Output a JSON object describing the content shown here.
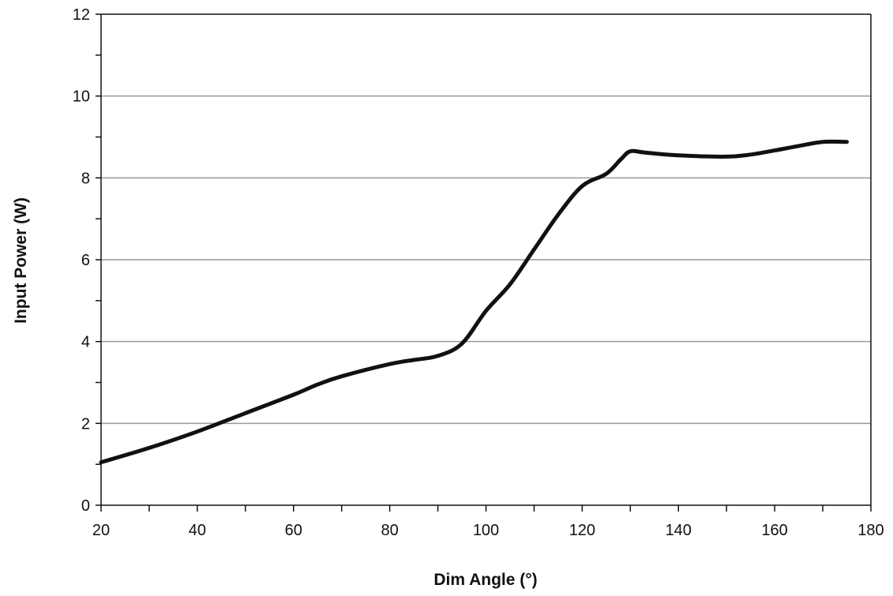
{
  "chart_data": {
    "type": "line",
    "title": "",
    "xlabel": "Dim Angle (°)",
    "ylabel": "Input Power (W)",
    "xlim": [
      20,
      180
    ],
    "ylim": [
      0,
      12
    ],
    "x_ticks": [
      20,
      40,
      60,
      80,
      100,
      120,
      140,
      160,
      180
    ],
    "y_ticks": [
      0,
      2,
      4,
      6,
      8,
      10,
      12
    ],
    "grid": "horizontal",
    "legend": "none",
    "line_color": "#111111",
    "grid_color": "#999999",
    "series": [
      {
        "x": [
          20,
          30,
          40,
          50,
          60,
          65,
          70,
          80,
          85,
          90,
          95,
          100,
          105,
          110,
          115,
          120,
          125,
          128,
          130,
          133,
          140,
          150,
          155,
          160,
          165,
          170,
          175
        ],
        "y": [
          1.05,
          1.4,
          1.8,
          2.25,
          2.7,
          2.95,
          3.15,
          3.45,
          3.55,
          3.65,
          3.95,
          4.75,
          5.4,
          6.25,
          7.1,
          7.8,
          8.1,
          8.45,
          8.65,
          8.62,
          8.55,
          8.52,
          8.57,
          8.67,
          8.78,
          8.88,
          8.88
        ]
      }
    ]
  }
}
